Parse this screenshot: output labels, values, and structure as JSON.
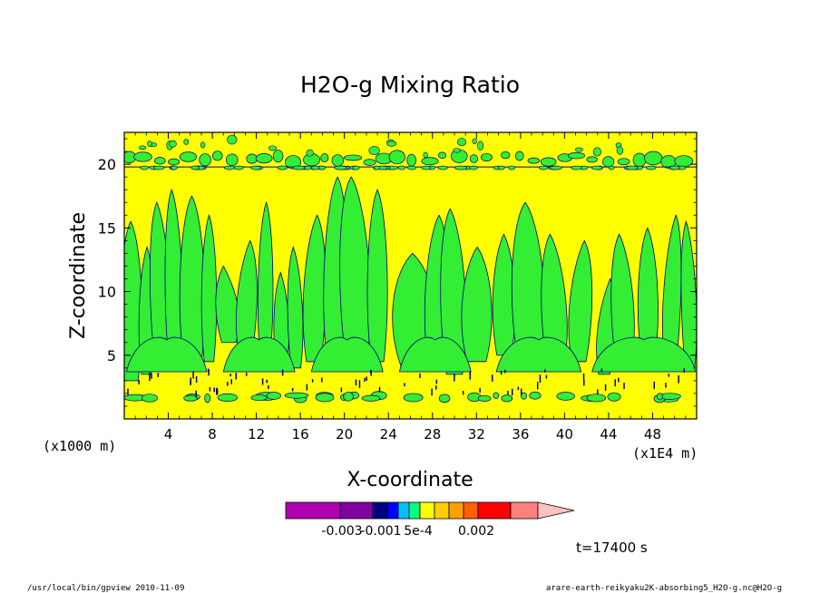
{
  "chart_data": {
    "type": "heatmap",
    "title": "H2O-g Mixing Ratio",
    "xlabel": "X-coordinate",
    "ylabel": "Z-coordinate",
    "x_unit_left": "(x1000 m)",
    "x_unit_right": "(x1E4 m)",
    "xlim": [
      0,
      52
    ],
    "ylim": [
      0,
      22.5
    ],
    "x_ticks": [
      "4",
      "8",
      "12",
      "16",
      "20",
      "24",
      "28",
      "32",
      "36",
      "40",
      "44",
      "48"
    ],
    "x_tick_values": [
      4,
      8,
      12,
      16,
      20,
      24,
      28,
      32,
      36,
      40,
      44,
      48
    ],
    "y_ticks": [
      "5",
      "10",
      "15",
      "20"
    ],
    "y_tick_values": [
      5,
      10,
      15,
      20
    ],
    "background_level_color": "#ffff00",
    "feature_level_color": "#33ee33",
    "contour_color": "#000080",
    "upper_band_z": 20,
    "plumes": [
      {
        "x": 0.6,
        "base": 3.0,
        "top": 15.5,
        "w": 0.9
      },
      {
        "x": 2.0,
        "base": 3.5,
        "top": 13.5,
        "w": 0.6
      },
      {
        "x": 3.4,
        "base": 4.0,
        "top": 17.0,
        "w": 0.8
      },
      {
        "x": 4.6,
        "base": 3.8,
        "top": 18.0,
        "w": 0.7
      },
      {
        "x": 6.2,
        "base": 3.8,
        "top": 17.5,
        "w": 1.0
      },
      {
        "x": 7.7,
        "base": 4.5,
        "top": 16.0,
        "w": 0.6
      },
      {
        "x": 9.5,
        "base": 6.0,
        "top": 12.0,
        "w": 0.9
      },
      {
        "x": 11.0,
        "base": 5.0,
        "top": 14.0,
        "w": 0.8
      },
      {
        "x": 12.8,
        "base": 4.5,
        "top": 17.0,
        "w": 0.6
      },
      {
        "x": 14.3,
        "base": 4.0,
        "top": 11.5,
        "w": 0.6
      },
      {
        "x": 15.6,
        "base": 4.0,
        "top": 13.5,
        "w": 0.6
      },
      {
        "x": 17.2,
        "base": 4.5,
        "top": 16.0,
        "w": 0.9
      },
      {
        "x": 19.2,
        "base": 4.0,
        "top": 19.0,
        "w": 1.0
      },
      {
        "x": 21.1,
        "base": 4.0,
        "top": 19.0,
        "w": 1.2
      },
      {
        "x": 23.0,
        "base": 4.5,
        "top": 18.0,
        "w": 0.8
      },
      {
        "x": 26.5,
        "base": 4.0,
        "top": 13.0,
        "w": 1.8
      },
      {
        "x": 28.4,
        "base": 3.8,
        "top": 16.0,
        "w": 1.0
      },
      {
        "x": 30.0,
        "base": 3.5,
        "top": 16.5,
        "w": 1.0
      },
      {
        "x": 32.0,
        "base": 4.5,
        "top": 13.5,
        "w": 1.2
      },
      {
        "x": 34.5,
        "base": 5.0,
        "top": 14.5,
        "w": 0.9
      },
      {
        "x": 36.8,
        "base": 4.0,
        "top": 17.0,
        "w": 1.3
      },
      {
        "x": 39.2,
        "base": 3.8,
        "top": 14.5,
        "w": 1.0
      },
      {
        "x": 41.3,
        "base": 4.5,
        "top": 14.0,
        "w": 0.9
      },
      {
        "x": 43.6,
        "base": 3.5,
        "top": 11.0,
        "w": 0.7
      },
      {
        "x": 45.4,
        "base": 4.0,
        "top": 14.5,
        "w": 0.9
      },
      {
        "x": 47.6,
        "base": 4.5,
        "top": 15.0,
        "w": 0.8
      },
      {
        "x": 49.6,
        "base": 4.0,
        "top": 16.0,
        "w": 0.7
      },
      {
        "x": 51.4,
        "base": 4.0,
        "top": 15.5,
        "w": 0.6
      }
    ],
    "colorbar": {
      "colors": [
        "#b000b0",
        "#8000a0",
        "#000080",
        "#0000ff",
        "#00c0ff",
        "#00ff80",
        "#ffff00",
        "#ffd000",
        "#ffa000",
        "#ff6000",
        "#ff0000",
        "#ff8080",
        "#ffc0c0"
      ],
      "labels": [
        "-0.003",
        "-0.001",
        "5e-4",
        "0.002"
      ]
    },
    "time_label": "t=17400 s"
  },
  "footer": {
    "left": "/usr/local/bin/gpview   2010-11-09",
    "right": "arare-earth-reikyaku2K-absorbing5_H2O-g.nc@H2O-g"
  }
}
